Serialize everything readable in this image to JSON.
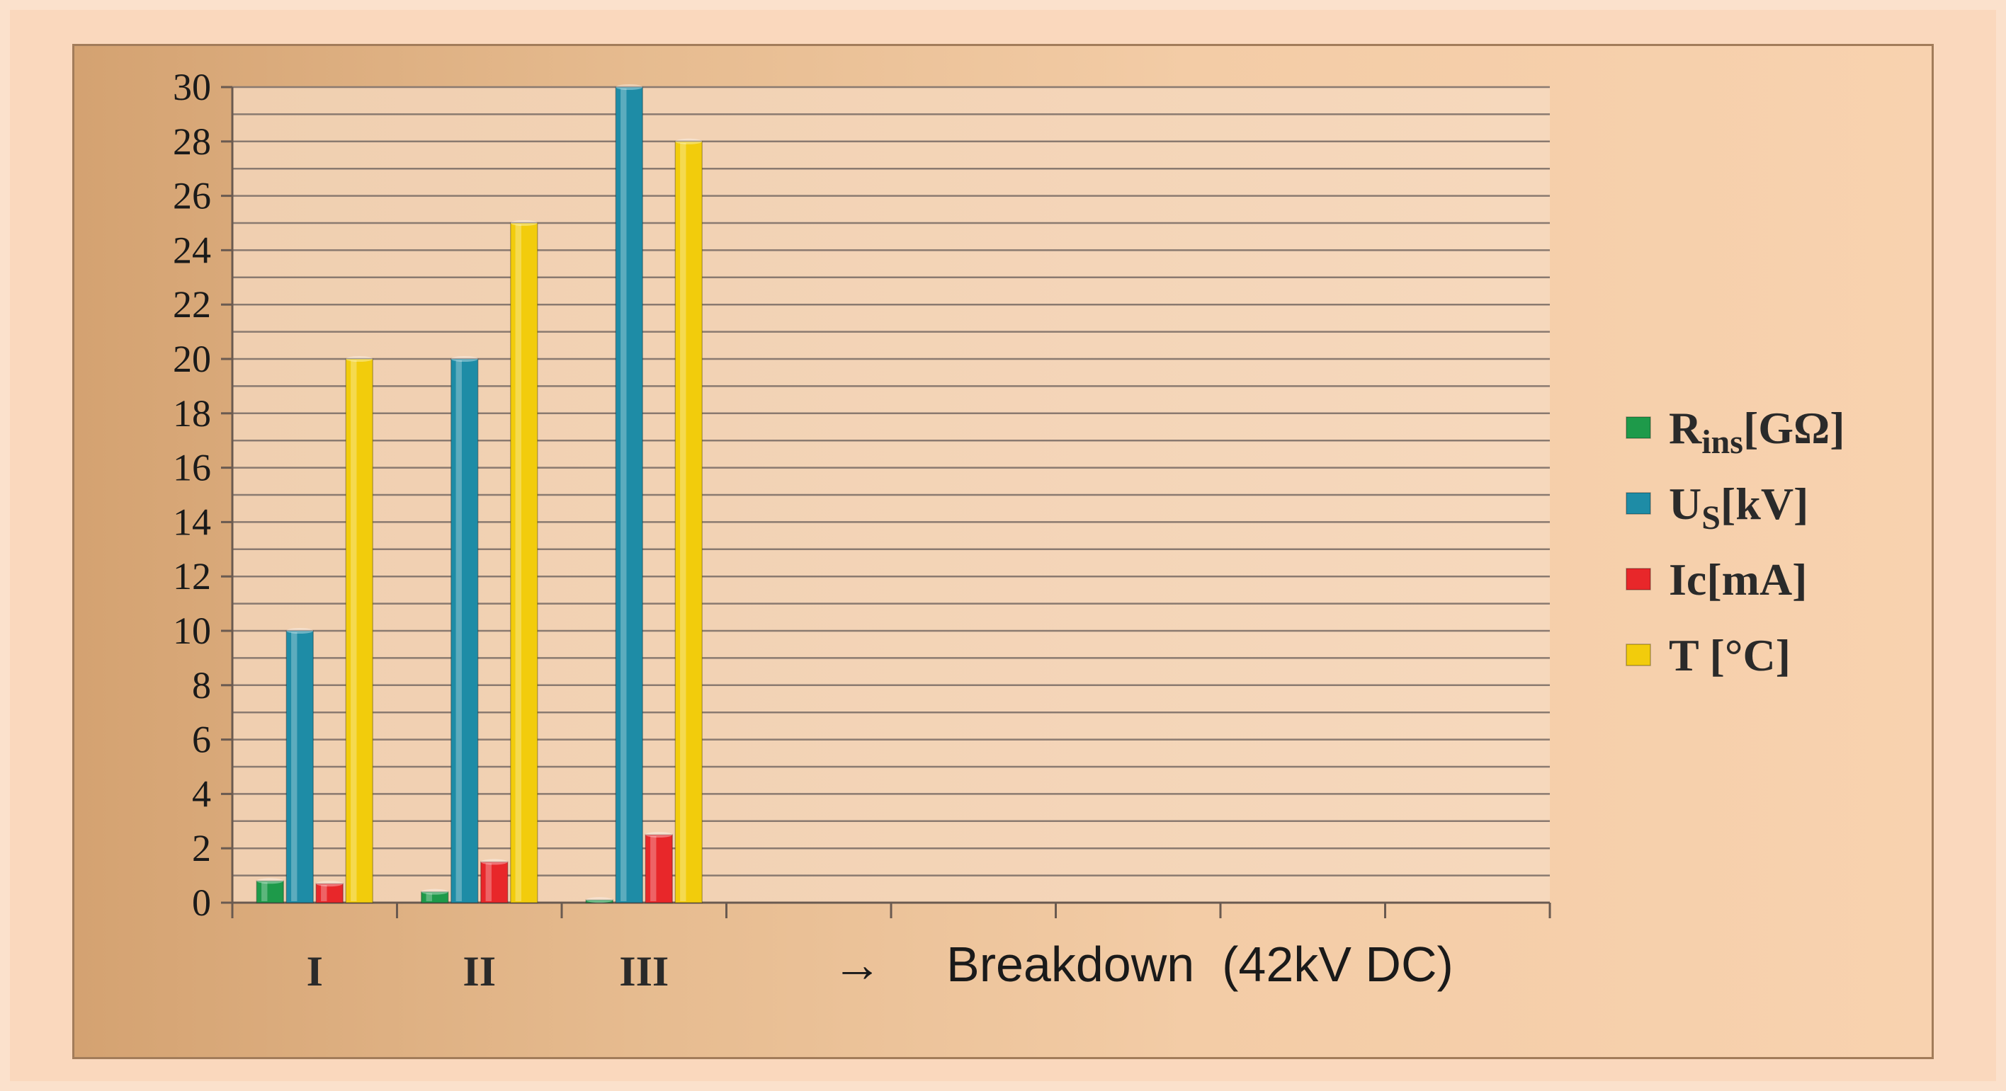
{
  "chart_data": {
    "type": "bar",
    "title": "",
    "xlabel": "",
    "ylabel": "",
    "ylim": [
      0,
      30
    ],
    "yticks": [
      0,
      2,
      4,
      6,
      8,
      10,
      12,
      14,
      16,
      18,
      20,
      22,
      24,
      26,
      28,
      30
    ],
    "grid": true,
    "legend_position": "right",
    "categories": [
      "I",
      "II",
      "III"
    ],
    "empty_slots": 5,
    "series": [
      {
        "name": "Rins[GΩ]",
        "label_main": "R",
        "label_sub": "ins",
        "label_tail": "[GΩ]",
        "color": "#1e9a4a",
        "values": [
          0.8,
          0.4,
          0.1
        ]
      },
      {
        "name": "US[kV]",
        "label_main": "U",
        "label_sub": "S",
        "label_tail": "[kV]",
        "color": "#1e8ca6",
        "values": [
          10,
          20,
          30
        ]
      },
      {
        "name": "Ic[mA]",
        "label_main": "Ic[mA]",
        "label_sub": "",
        "label_tail": "",
        "color": "#e8272a",
        "values": [
          0.7,
          1.5,
          2.5
        ]
      },
      {
        "name": "T [°C]",
        "label_main": "T [°C]",
        "label_sub": "",
        "label_tail": "",
        "color": "#f2cc0c",
        "values": [
          20,
          25,
          28
        ]
      }
    ],
    "annotation": {
      "arrow": "→",
      "text": "Breakdown  (42kV DC)"
    }
  }
}
